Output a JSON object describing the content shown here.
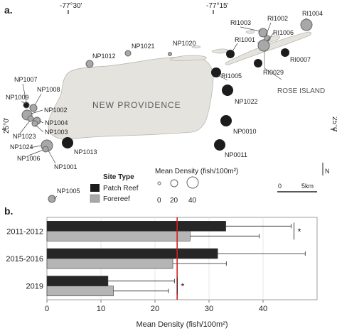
{
  "panel_a": {
    "letter": "a.",
    "coords": {
      "lon_left": "-77°30'",
      "lon_right": "-77°15'",
      "lat_left": "25°0'",
      "lat_right": "25°0'"
    },
    "island_labels": {
      "new_providence": "NEW PROVIDENCE",
      "rose_island": "ROSE ISLAND"
    },
    "north": "N",
    "scale_bar": {
      "start": "0",
      "end": "5km"
    },
    "legend": {
      "site_type_title": "Site Type",
      "patch_reef": "Patch Reef",
      "forereef": "Forereef",
      "density_title": "Mean Density (fish/100m²)",
      "density_values": [
        "0",
        "20",
        "40"
      ]
    },
    "colors": {
      "land": "#e5e3de",
      "patch_reef": "#1c1c1c",
      "forereef": "#a8a8a8"
    },
    "sites": [
      {
        "id": "NP1007",
        "type": "forereef"
      },
      {
        "id": "NP1008",
        "type": "forereef"
      },
      {
        "id": "NP1009",
        "type": "patch"
      },
      {
        "id": "NP1002",
        "type": "forereef"
      },
      {
        "id": "NP1004",
        "type": "forereef"
      },
      {
        "id": "NP1023",
        "type": "forereef"
      },
      {
        "id": "NP1003",
        "type": "forereef"
      },
      {
        "id": "NP1024",
        "type": "forereef"
      },
      {
        "id": "NP1006",
        "type": "forereef"
      },
      {
        "id": "NP1001",
        "type": "forereef"
      },
      {
        "id": "NP1013",
        "type": "patch"
      },
      {
        "id": "NP1005",
        "type": "forereef"
      },
      {
        "id": "NP1012",
        "type": "forereef"
      },
      {
        "id": "NP1021",
        "type": "forereef"
      },
      {
        "id": "NP1020",
        "type": "forereef"
      },
      {
        "id": "RI1003",
        "type": "forereef"
      },
      {
        "id": "RI1002",
        "type": "forereef"
      },
      {
        "id": "RI1004",
        "type": "forereef"
      },
      {
        "id": "RI1001",
        "type": "patch"
      },
      {
        "id": "RI1006",
        "type": "forereef"
      },
      {
        "id": "RI0007",
        "type": "patch"
      },
      {
        "id": "RI0029",
        "type": "patch"
      },
      {
        "id": "RI1005",
        "type": "patch"
      },
      {
        "id": "NP1022",
        "type": "patch"
      },
      {
        "id": "NP0010",
        "type": "patch"
      },
      {
        "id": "NP0011",
        "type": "patch"
      }
    ]
  },
  "panel_b": {
    "letter": "b."
  },
  "chart_data": {
    "type": "bar",
    "orientation": "horizontal",
    "categories": [
      "2011-2012",
      "2015-2016",
      "2019"
    ],
    "series": [
      {
        "name": "Patch Reef",
        "color": "#262626",
        "values": [
          33.1,
          31.6,
          11.3
        ],
        "error_upper": [
          45.2,
          47.8,
          23.6
        ]
      },
      {
        "name": "Forereef",
        "color": "#b5b5b5",
        "values": [
          26.5,
          23.3,
          12.3
        ],
        "error_upper": [
          39.3,
          33.2,
          22.5
        ]
      }
    ],
    "xlabel": "Mean Density (fish/100m²)",
    "xlim": [
      0,
      50
    ],
    "xticks": [
      "0",
      "10",
      "20",
      "30",
      "40"
    ],
    "reference_line": {
      "value": 24.1,
      "color": "#d42020"
    },
    "significance": [
      "*",
      "",
      "*"
    ],
    "grid": true
  }
}
